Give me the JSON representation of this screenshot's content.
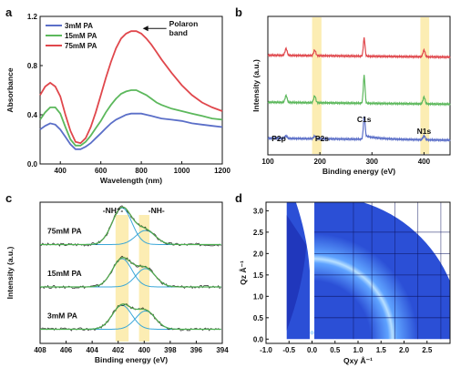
{
  "panels": [
    {
      "id": "a",
      "chart_data": {
        "type": "line",
        "xlabel": "Wavelength (nm)",
        "ylabel": "Absorbance",
        "xlim": [
          300,
          1200
        ],
        "ylim": [
          0.0,
          1.2
        ],
        "xticks": [
          400,
          600,
          800,
          1000,
          1200
        ],
        "yticks": [
          0.0,
          0.4,
          0.8,
          1.2
        ],
        "legend_position": "top-left",
        "annotation": {
          "text": "Polaron band",
          "x": 780,
          "y": 1.08
        },
        "x": [
          300,
          325,
          350,
          375,
          400,
          425,
          450,
          475,
          500,
          525,
          550,
          575,
          600,
          625,
          650,
          675,
          700,
          725,
          750,
          775,
          800,
          825,
          850,
          875,
          900,
          950,
          1000,
          1050,
          1100,
          1150,
          1200
        ],
        "series": [
          {
            "name": "3mM PA",
            "color": "#5b6fc8",
            "values": [
              0.28,
              0.31,
              0.33,
              0.32,
              0.28,
              0.22,
              0.16,
              0.12,
              0.12,
              0.14,
              0.17,
              0.21,
              0.25,
              0.29,
              0.33,
              0.36,
              0.38,
              0.4,
              0.41,
              0.41,
              0.41,
              0.4,
              0.39,
              0.38,
              0.37,
              0.36,
              0.35,
              0.33,
              0.32,
              0.31,
              0.3
            ]
          },
          {
            "name": "15mM PA",
            "color": "#5cb85c",
            "values": [
              0.36,
              0.42,
              0.46,
              0.46,
              0.41,
              0.3,
              0.2,
              0.15,
              0.15,
              0.18,
              0.23,
              0.29,
              0.35,
              0.42,
              0.48,
              0.53,
              0.57,
              0.59,
              0.6,
              0.6,
              0.58,
              0.56,
              0.53,
              0.5,
              0.48,
              0.45,
              0.43,
              0.41,
              0.39,
              0.37,
              0.36
            ]
          },
          {
            "name": "75mM PA",
            "color": "#e0474c",
            "values": [
              0.56,
              0.63,
              0.66,
              0.63,
              0.55,
              0.4,
              0.27,
              0.18,
              0.17,
              0.21,
              0.3,
              0.42,
              0.56,
              0.7,
              0.83,
              0.94,
              1.02,
              1.06,
              1.08,
              1.08,
              1.06,
              1.02,
              0.97,
              0.91,
              0.85,
              0.74,
              0.64,
              0.56,
              0.5,
              0.46,
              0.43
            ]
          }
        ]
      }
    },
    {
      "id": "b",
      "chart_data": {
        "type": "line",
        "xlabel": "Binding energy (eV)",
        "ylabel": "Intensity (a.u.)",
        "xlim": [
          100,
          450
        ],
        "xticks": [
          100,
          200,
          300,
          400
        ],
        "highlight_bands": [
          [
            185,
            203
          ],
          [
            393,
            410
          ]
        ],
        "peak_labels": [
          {
            "text": "P2p",
            "x": 135
          },
          {
            "text": "P2s",
            "x": 190
          },
          {
            "text": "C1s",
            "x": 285
          },
          {
            "text": "N1s",
            "x": 400
          }
        ],
        "series": [
          {
            "color": "#5b6fc8",
            "baseline": 0.12,
            "peaks": [
              [
                135,
                0.02
              ],
              [
                190,
                0.02
              ],
              [
                285,
                0.16
              ],
              [
                400,
                0.03
              ]
            ]
          },
          {
            "color": "#5cb85c",
            "baseline": 0.38,
            "peaks": [
              [
                135,
                0.05
              ],
              [
                190,
                0.05
              ],
              [
                285,
                0.2
              ],
              [
                400,
                0.05
              ]
            ]
          },
          {
            "color": "#e0474c",
            "baseline": 0.72,
            "peaks": [
              [
                135,
                0.05
              ],
              [
                190,
                0.04
              ],
              [
                285,
                0.13
              ],
              [
                400,
                0.05
              ]
            ]
          }
        ]
      }
    },
    {
      "id": "c",
      "chart_data": {
        "type": "line",
        "xlabel": "Binding energy (eV)",
        "ylabel": "Intensity (a.u.)",
        "xlim": [
          408,
          394
        ],
        "xticks": [
          408,
          406,
          404,
          402,
          400,
          398,
          396,
          394
        ],
        "highlight_bands": [
          [
            401.2,
            402.2
          ],
          [
            399.6,
            400.4
          ]
        ],
        "peak_labels": [
          {
            "text": "-NH⁺-",
            "x": 401.7
          },
          {
            "text": "-NH-",
            "x": 399.9
          }
        ],
        "series": [
          {
            "name": "75mM PA",
            "baseline": 0.7,
            "components": [
              [
                401.7,
                0.26,
                0.75
              ],
              [
                399.9,
                0.1,
                0.75
              ]
            ]
          },
          {
            "name": "15mM PA",
            "baseline": 0.4,
            "components": [
              [
                401.7,
                0.2,
                0.75
              ],
              [
                399.9,
                0.13,
                0.75
              ]
            ]
          },
          {
            "name": "3mM PA",
            "baseline": 0.1,
            "components": [
              [
                401.7,
                0.17,
                0.75
              ],
              [
                399.9,
                0.13,
                0.75
              ]
            ]
          }
        ],
        "colors": {
          "raw": "#2a2a2a",
          "fit_highlight": "#c23b3b",
          "envelope": "#4caf50",
          "component_a": "#3aa7d8",
          "component_b": "#3aa7d8"
        }
      }
    },
    {
      "id": "d",
      "chart_data": {
        "type": "heatmap",
        "xlabel": "Qxy Å⁻¹",
        "ylabel": "Qz Å⁻¹",
        "xlim": [
          -1.0,
          3.0
        ],
        "ylim": [
          -0.1,
          3.2
        ],
        "xticks": [
          "-1.0",
          "-0.5",
          "0.0",
          "0.5",
          "1.0",
          "1.5",
          "2.0",
          "2.5"
        ],
        "yticks": [
          "0.0",
          "0.5",
          "1.0",
          "1.5",
          "2.0",
          "2.5",
          "3.0"
        ],
        "ring_q": 1.72,
        "colors": {
          "background": "#1a1f8f",
          "data": "#2b4fd6",
          "ring": "#5fa3ff",
          "hot": "#b8e0ff"
        }
      }
    }
  ]
}
